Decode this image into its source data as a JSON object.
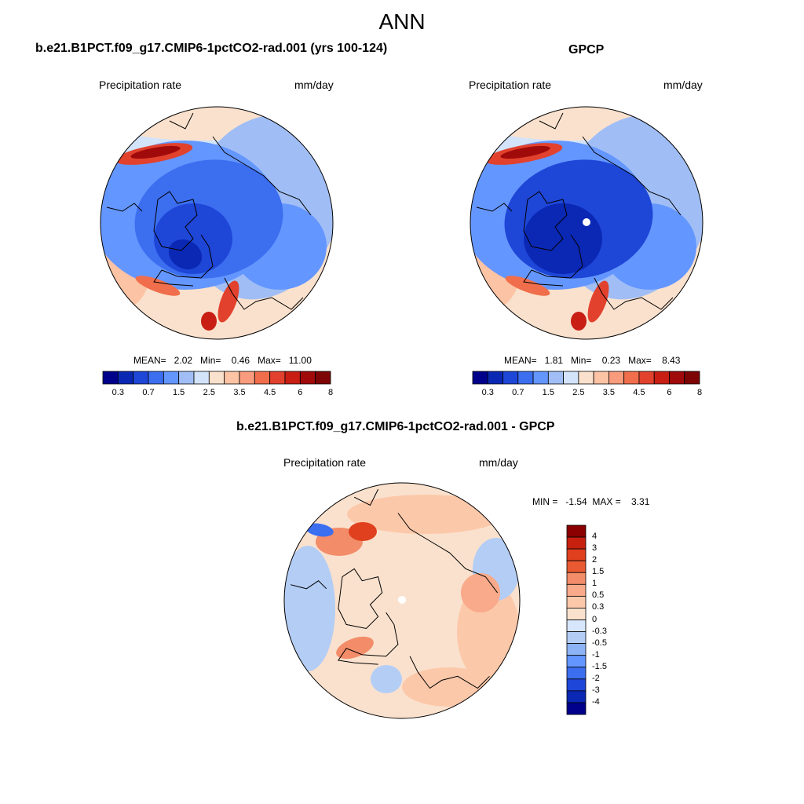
{
  "title": "ANN",
  "colors": {
    "seq": [
      "#00008b",
      "#0a28b4",
      "#1e46d7",
      "#3c6ef0",
      "#6496ff",
      "#a0bef5",
      "#d2e3fa",
      "#fae1cd",
      "#fcc3a5",
      "#f89c7d",
      "#f06e4b",
      "#e1412d",
      "#c81e14",
      "#a00a0a",
      "#7d0505"
    ],
    "div": [
      "#00008b",
      "#0a28b4",
      "#1e46d7",
      "#3c6ef0",
      "#6496ff",
      "#8cb4f5",
      "#b4cdf5",
      "#d7e6fa",
      "#fae1cd",
      "#fcc8aa",
      "#f9aa8a",
      "#f28c69",
      "#ea5a32",
      "#e0401e",
      "#c8200f",
      "#8b0000"
    ],
    "land_outline": "#000000"
  },
  "panels": {
    "model": {
      "title": "b.e21.B1PCT.f09_g17.CMIP6-1pctCO2-rad.001 (yrs 100-124)",
      "left_label": "Precipitation rate",
      "right_label": "mm/day",
      "stats": "MEAN=   2.02   Min=    0.46   Max=   11.00"
    },
    "obs": {
      "title": "GPCP",
      "left_label": "Precipitation rate",
      "right_label": "mm/day",
      "stats": "MEAN=   1.81   Min=    0.23   Max=    8.43"
    },
    "diff": {
      "title": "b.e21.B1PCT.f09_g17.CMIP6-1pctCO2-rad.001 - GPCP",
      "left_label": "Precipitation rate",
      "right_label": "mm/day",
      "stats": "MIN =   -1.54  MAX =    3.31"
    }
  },
  "chart_data": [
    {
      "type": "heatmap",
      "projection": "north polar stereographic",
      "title": "b.e21.B1PCT.f09_g17.CMIP6-1pctCO2-rad.001 (yrs 100-124)",
      "variable": "Precipitation rate",
      "units": "mm/day",
      "mean": 2.02,
      "min": 0.46,
      "max": 11.0,
      "colorbar_labels": [
        "0.3",
        "0.7",
        "1.5",
        "2.5",
        "3.5",
        "4.5",
        "6",
        "8"
      ],
      "contour_levels": [
        0.2,
        0.3,
        0.5,
        0.7,
        1,
        1.5,
        2,
        2.5,
        3,
        3.5,
        4,
        4.5,
        5,
        6,
        7,
        8
      ]
    },
    {
      "type": "heatmap",
      "projection": "north polar stereographic",
      "title": "GPCP",
      "variable": "Precipitation rate",
      "units": "mm/day",
      "mean": 1.81,
      "min": 0.23,
      "max": 8.43,
      "colorbar_labels": [
        "0.3",
        "0.7",
        "1.5",
        "2.5",
        "3.5",
        "4.5",
        "6",
        "8"
      ],
      "contour_levels": [
        0.2,
        0.3,
        0.5,
        0.7,
        1,
        1.5,
        2,
        2.5,
        3,
        3.5,
        4,
        4.5,
        5,
        6,
        7,
        8
      ]
    },
    {
      "type": "heatmap",
      "projection": "north polar stereographic",
      "title": "b.e21.B1PCT.f09_g17.CMIP6-1pctCO2-rad.001 - GPCP",
      "variable": "Precipitation rate",
      "units": "mm/day",
      "min": -1.54,
      "max": 3.31,
      "colorbar_labels": [
        "4",
        "3",
        "2",
        "1.5",
        "1",
        "0.5",
        "0.3",
        "0",
        "-0.3",
        "-0.5",
        "-1",
        "-1.5",
        "-2",
        "-3",
        "-4"
      ]
    }
  ]
}
